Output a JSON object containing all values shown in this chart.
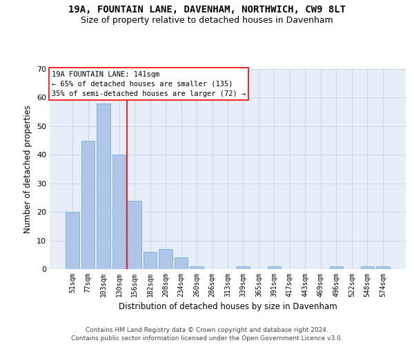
{
  "title_line1": "19A, FOUNTAIN LANE, DAVENHAM, NORTHWICH, CW9 8LT",
  "title_line2": "Size of property relative to detached houses in Davenham",
  "xlabel": "Distribution of detached houses by size in Davenham",
  "ylabel": "Number of detached properties",
  "footer_line1": "Contains HM Land Registry data © Crown copyright and database right 2024.",
  "footer_line2": "Contains public sector information licensed under the Open Government Licence v3.0.",
  "categories": [
    "51sqm",
    "77sqm",
    "103sqm",
    "130sqm",
    "156sqm",
    "182sqm",
    "208sqm",
    "234sqm",
    "260sqm",
    "286sqm",
    "313sqm",
    "339sqm",
    "365sqm",
    "391sqm",
    "417sqm",
    "443sqm",
    "469sqm",
    "496sqm",
    "522sqm",
    "548sqm",
    "574sqm"
  ],
  "values": [
    20,
    45,
    58,
    40,
    24,
    6,
    7,
    4,
    1,
    0,
    0,
    1,
    0,
    1,
    0,
    0,
    0,
    1,
    0,
    1,
    1
  ],
  "bar_color": "#aec6e8",
  "bar_edge_color": "#7aafd4",
  "grid_color": "#c8d4e8",
  "background_color": "#e8eef8",
  "annotation_line1": "19A FOUNTAIN LANE: 141sqm",
  "annotation_line2": "← 65% of detached houses are smaller (135)",
  "annotation_line3": "35% of semi-detached houses are larger (72) →",
  "red_line_x": 3.5,
  "ylim": [
    0,
    70
  ],
  "yticks": [
    0,
    10,
    20,
    30,
    40,
    50,
    60,
    70
  ],
  "title_fontsize": 10,
  "subtitle_fontsize": 9,
  "axis_label_fontsize": 8.5,
  "tick_fontsize": 7,
  "annotation_fontsize": 7.5,
  "footer_fontsize": 6.5
}
